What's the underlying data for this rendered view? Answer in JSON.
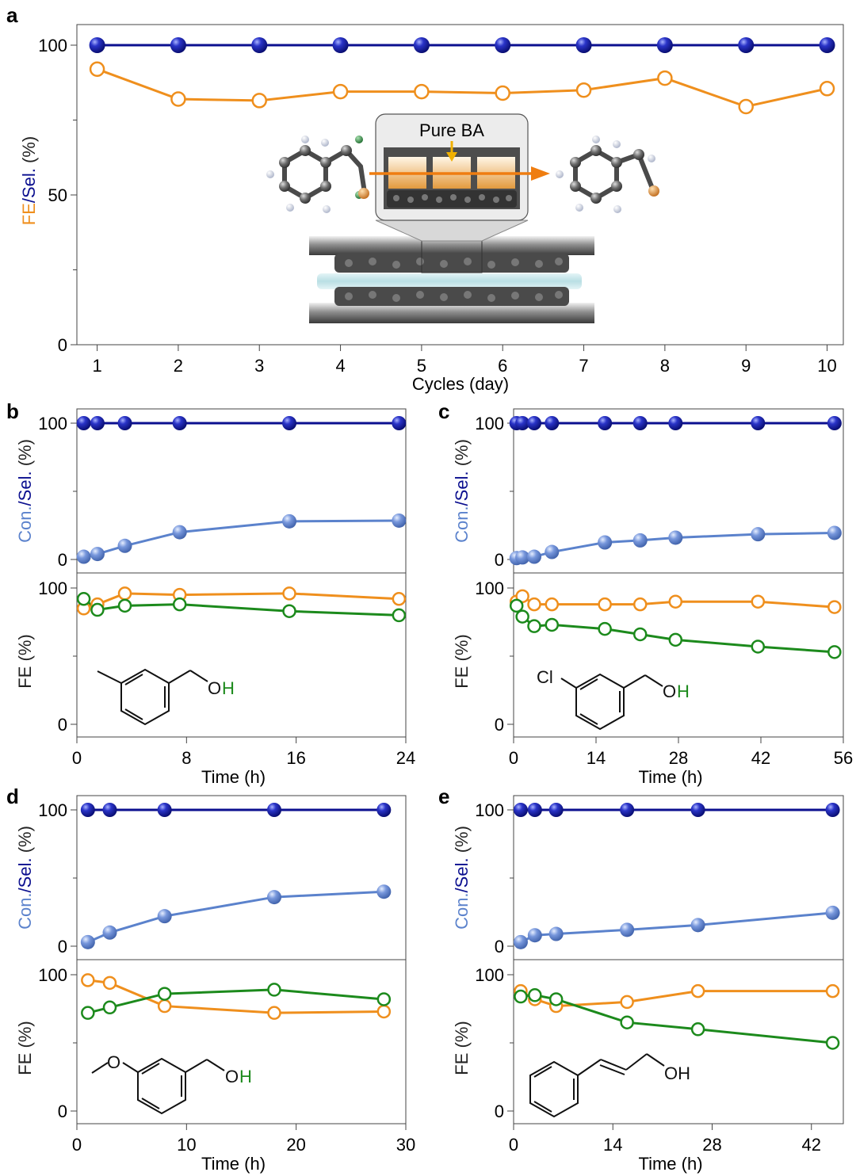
{
  "colors": {
    "sel": "#0b0f8f",
    "fe_orange": "#ef8f1d",
    "con": "#5b82cc",
    "fe_green": "#1c8a1c",
    "axis": "#444444"
  },
  "chart_data": [
    {
      "panel": "a",
      "type": "line",
      "xlabel": "Cycles (day)",
      "ylabel_parts": [
        "FE",
        "/",
        "Sel.",
        " (%)"
      ],
      "xlim": [
        0.75,
        10.2
      ],
      "ylim": [
        0,
        100
      ],
      "xticks": [
        1,
        2,
        3,
        4,
        5,
        6,
        7,
        8,
        9,
        10
      ],
      "yticks": [
        0,
        50,
        100
      ],
      "inset_label": "Pure BA",
      "series": [
        {
          "key": "sel",
          "x": [
            1,
            2,
            3,
            4,
            5,
            6,
            7,
            8,
            9,
            10
          ],
          "values": [
            100,
            100,
            100,
            100,
            100,
            100,
            100,
            100,
            100,
            100
          ]
        },
        {
          "key": "fe",
          "x": [
            1,
            2,
            3,
            4,
            5,
            6,
            7,
            8,
            9,
            10
          ],
          "values": [
            92,
            82,
            81.5,
            84.5,
            84.5,
            84,
            85,
            89,
            79.5,
            85.5
          ]
        }
      ]
    },
    {
      "panel": "b",
      "type": "line",
      "xlabel": "Time (h)",
      "xlim": [
        0,
        24
      ],
      "xticks": [
        0,
        8,
        16,
        24
      ],
      "top": {
        "ylabel_parts": [
          "Con.",
          "/",
          "Sel.",
          " (%)"
        ],
        "ylim": [
          0,
          100
        ],
        "yticks": [
          0,
          100
        ],
        "series": [
          {
            "key": "sel",
            "x": [
              0.5,
              1.5,
              3.5,
              7.5,
              15.5,
              23.5
            ],
            "values": [
              100,
              100,
              100,
              100,
              100,
              100
            ]
          },
          {
            "key": "con",
            "x": [
              0.5,
              1.5,
              3.5,
              7.5,
              15.5,
              23.5
            ],
            "values": [
              2,
              4,
              10,
              20,
              28,
              28.5
            ]
          }
        ]
      },
      "bottom": {
        "ylabel": "FE (%)",
        "ylim": [
          0,
          100
        ],
        "yticks": [
          0,
          100
        ],
        "series": [
          {
            "key": "fe_orange",
            "x": [
              0.5,
              1.5,
              3.5,
              7.5,
              15.5,
              23.5
            ],
            "values": [
              85,
              88,
              96,
              95,
              96,
              92
            ]
          },
          {
            "key": "fe_green",
            "x": [
              0.5,
              1.5,
              3.5,
              7.5,
              15.5,
              23.5
            ],
            "values": [
              92,
              84,
              87,
              88,
              83,
              80
            ]
          }
        ]
      },
      "molecule": {
        "label_o": "O",
        "label_h": "H"
      }
    },
    {
      "panel": "c",
      "type": "line",
      "xlabel": "Time (h)",
      "xlim": [
        0,
        56
      ],
      "xticks": [
        0,
        14,
        28,
        42,
        56
      ],
      "top": {
        "ylabel_parts": [
          "Con.",
          "/",
          "Sel.",
          " (%)"
        ],
        "ylim": [
          0,
          100
        ],
        "yticks": [
          0,
          100
        ],
        "series": [
          {
            "key": "sel",
            "x": [
              0.5,
              1.5,
              3.5,
              6.5,
              15.5,
              21.5,
              27.5,
              41.5,
              54.5
            ],
            "values": [
              100,
              100,
              100,
              100,
              100,
              100,
              100,
              100,
              100
            ]
          },
          {
            "key": "con",
            "x": [
              0.5,
              1.5,
              3.5,
              6.5,
              15.5,
              21.5,
              27.5,
              41.5,
              54.5
            ],
            "values": [
              1,
              1.5,
              2,
              5.5,
              12.5,
              14,
              16,
              18.5,
              19.5
            ]
          }
        ]
      },
      "bottom": {
        "ylabel": "FE (%)",
        "ylim": [
          0,
          100
        ],
        "yticks": [
          0,
          100
        ],
        "series": [
          {
            "key": "fe_orange",
            "x": [
              0.5,
              1.5,
              3.5,
              6.5,
              15.5,
              21.5,
              27.5,
              41.5,
              54.5
            ],
            "values": [
              90,
              94,
              88,
              88,
              88,
              88,
              90,
              90,
              86
            ]
          },
          {
            "key": "fe_green",
            "x": [
              0.5,
              1.5,
              3.5,
              6.5,
              15.5,
              21.5,
              27.5,
              41.5,
              54.5
            ],
            "values": [
              87,
              79,
              72,
              73,
              70,
              66,
              62,
              57,
              53
            ]
          }
        ]
      },
      "molecule": {
        "label_cl": "Cl",
        "label_o": "O",
        "label_h": "H"
      }
    },
    {
      "panel": "d",
      "type": "line",
      "xlabel": "Time (h)",
      "xlim": [
        0,
        30
      ],
      "xticks": [
        0,
        10,
        20,
        30
      ],
      "top": {
        "ylabel_parts": [
          "Con.",
          "/",
          "Sel.",
          " (%)"
        ],
        "ylim": [
          0,
          100
        ],
        "yticks": [
          0,
          100
        ],
        "series": [
          {
            "key": "sel",
            "x": [
              1,
              3,
              8,
              18,
              28
            ],
            "values": [
              100,
              100,
              100,
              100,
              100
            ]
          },
          {
            "key": "con",
            "x": [
              1,
              3,
              8,
              18,
              28
            ],
            "values": [
              3,
              10,
              22,
              36,
              40
            ]
          }
        ]
      },
      "bottom": {
        "ylabel": "FE (%)",
        "ylim": [
          0,
          100
        ],
        "yticks": [
          0,
          100
        ],
        "series": [
          {
            "key": "fe_orange",
            "x": [
              1,
              3,
              8,
              18,
              28
            ],
            "values": [
              96,
              94,
              77,
              72,
              73
            ]
          },
          {
            "key": "fe_green",
            "x": [
              1,
              3,
              8,
              18,
              28
            ],
            "values": [
              72,
              76,
              86,
              89,
              82
            ]
          }
        ]
      },
      "molecule": {
        "label_o_top": "O",
        "label_o": "O",
        "label_h": "H"
      }
    },
    {
      "panel": "e",
      "type": "line",
      "xlabel": "Time (h)",
      "xlim": [
        0,
        46.5
      ],
      "xticks": [
        0,
        14,
        28,
        42
      ],
      "top": {
        "ylabel_parts": [
          "Con.",
          "/",
          "Sel.",
          " (%)"
        ],
        "ylim": [
          0,
          100
        ],
        "yticks": [
          0,
          100
        ],
        "series": [
          {
            "key": "sel",
            "x": [
              1,
              3,
              6,
              16,
              26,
              45
            ],
            "values": [
              100,
              100,
              100,
              100,
              100,
              100
            ]
          },
          {
            "key": "con",
            "x": [
              1,
              3,
              6,
              16,
              26,
              45
            ],
            "values": [
              3,
              8,
              9,
              12,
              15.5,
              24.5
            ]
          }
        ]
      },
      "bottom": {
        "ylabel": "FE (%)",
        "ylim": [
          0,
          100
        ],
        "yticks": [
          0,
          100
        ],
        "series": [
          {
            "key": "fe_orange",
            "x": [
              1,
              3,
              6,
              16,
              26,
              45
            ],
            "values": [
              88,
              82,
              77,
              80,
              88,
              88
            ]
          },
          {
            "key": "fe_green",
            "x": [
              1,
              3,
              6,
              16,
              26,
              45
            ],
            "values": [
              84,
              85,
              82,
              65,
              60,
              50
            ]
          }
        ]
      },
      "molecule": {
        "label_oh": "OH"
      }
    }
  ]
}
